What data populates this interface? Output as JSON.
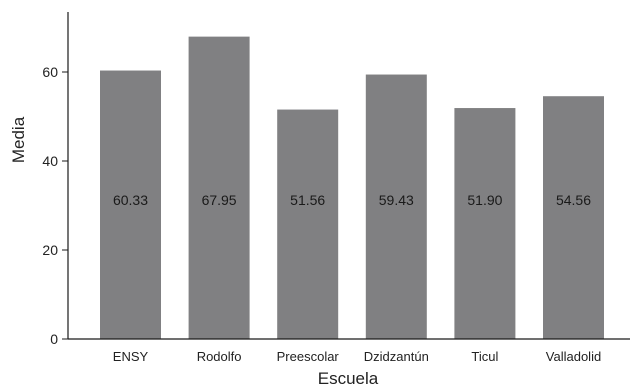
{
  "chart_data": {
    "type": "bar",
    "categories": [
      "ENSY",
      "Rodolfo",
      "Preescolar",
      "Dzidzantún",
      "Ticul",
      "Valladolid"
    ],
    "values": [
      60.33,
      67.95,
      51.56,
      59.43,
      51.9,
      54.56
    ],
    "data_labels": [
      "60.33",
      "67.95",
      "51.56",
      "59.43",
      "51.90",
      "54.56"
    ],
    "xlabel": "Escuela",
    "ylabel": "Media",
    "ylim": [
      0,
      73
    ],
    "yticks": [
      0,
      20,
      40,
      60
    ],
    "grid": false,
    "bar_color": "#808082"
  }
}
